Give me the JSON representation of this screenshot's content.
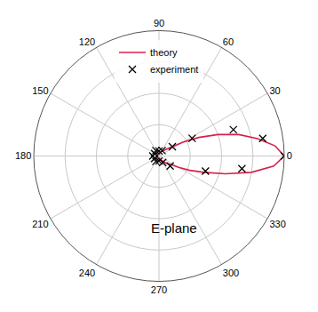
{
  "chart_data": {
    "type": "polar",
    "annotations": [
      "E-plane"
    ],
    "xlim": [
      0,
      360
    ],
    "xticks": [
      0,
      30,
      60,
      90,
      120,
      150,
      180,
      210,
      240,
      270,
      300,
      330
    ],
    "ylim": [
      0,
      1
    ],
    "yticks": [
      0,
      0.25,
      0.5,
      0.75,
      1
    ],
    "tick_labels": "x",
    "grid": true,
    "legend": "top",
    "series": [
      {
        "name": "theory",
        "type": "line",
        "color": "#d81f4b",
        "line_style": "solid",
        "x": [
          -180,
          -135,
          -90,
          -60,
          -45,
          -35,
          -30,
          -25,
          -20,
          -15,
          -10,
          -5,
          0,
          5,
          10,
          15,
          20,
          25,
          30,
          35,
          45,
          60,
          90,
          135,
          180
        ],
        "values": [
          0.02,
          0.02,
          0.02,
          0.04,
          0.08,
          0.12,
          0.18,
          0.27,
          0.38,
          0.55,
          0.75,
          0.92,
          1.0,
          0.93,
          0.8,
          0.66,
          0.5,
          0.35,
          0.22,
          0.13,
          0.07,
          0.04,
          0.02,
          0.02,
          0.02
        ]
      },
      {
        "name": "experiment",
        "type": "scatter",
        "color": "#000000",
        "marker": "x",
        "x": [
          0,
          9.6,
          19.5,
          28,
          35,
          -8.7,
          -18,
          -42,
          60,
          90,
          120,
          150,
          180,
          210,
          240,
          270,
          300
        ],
        "values": [
          1.0,
          0.84,
          0.63,
          0.3,
          0.13,
          0.67,
          0.39,
          0.12,
          0.05,
          0.04,
          0.05,
          0.04,
          0.05,
          0.04,
          0.05,
          0.04,
          0.06
        ]
      }
    ]
  }
}
